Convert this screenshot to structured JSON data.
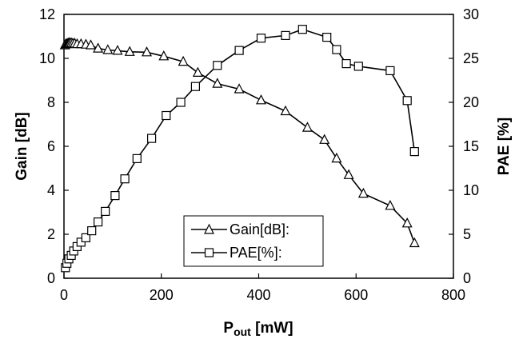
{
  "chart_data": {
    "type": "line",
    "x_axis": {
      "label_main": "P",
      "label_sub": "out",
      "label_unit": " [mW]",
      "min": 0,
      "max": 800,
      "ticks": [
        0,
        200,
        400,
        600,
        800
      ]
    },
    "y_axis_left": {
      "label": "Gain [dB]",
      "min": 0,
      "max": 12,
      "ticks": [
        0,
        2,
        4,
        6,
        8,
        10,
        12
      ]
    },
    "y_axis_right": {
      "label": "PAE [%]",
      "min": 0,
      "max": 30,
      "ticks": [
        0,
        5,
        10,
        15,
        20,
        25,
        30
      ]
    },
    "grid": false,
    "legend": {
      "position": "bottom-center"
    },
    "series": [
      {
        "name": "Gain[dB]:",
        "marker": "triangle",
        "axis": "left",
        "x": [
          2,
          4,
          6,
          8,
          10,
          12,
          15,
          18,
          22,
          27,
          35,
          45,
          55,
          70,
          90,
          110,
          135,
          170,
          205,
          245,
          275,
          315,
          360,
          405,
          455,
          500,
          535,
          560,
          585,
          615,
          670,
          705,
          720
        ],
        "y": [
          10.6,
          10.65,
          10.65,
          10.68,
          10.7,
          10.7,
          10.7,
          10.68,
          10.68,
          10.65,
          10.65,
          10.63,
          10.6,
          10.45,
          10.38,
          10.35,
          10.3,
          10.28,
          10.1,
          9.85,
          9.35,
          8.85,
          8.6,
          8.1,
          7.6,
          6.85,
          6.3,
          5.45,
          4.7,
          3.85,
          3.3,
          2.5,
          1.6
        ]
      },
      {
        "name": "PAE[%]:",
        "marker": "square",
        "axis": "right",
        "x": [
          3,
          6,
          10,
          15,
          20,
          27,
          35,
          45,
          57,
          70,
          85,
          105,
          125,
          150,
          180,
          210,
          240,
          270,
          315,
          360,
          405,
          455,
          490,
          540,
          560,
          580,
          605,
          670,
          705,
          720
        ],
        "y": [
          1.2,
          1.7,
          2.2,
          2.6,
          3.1,
          3.6,
          4.1,
          4.6,
          5.4,
          6.4,
          7.6,
          9.4,
          11.3,
          13.6,
          15.9,
          18.5,
          20.0,
          21.8,
          24.2,
          25.9,
          27.3,
          27.6,
          28.3,
          27.4,
          26.0,
          24.4,
          24.1,
          23.6,
          20.2,
          14.4
        ]
      }
    ]
  }
}
